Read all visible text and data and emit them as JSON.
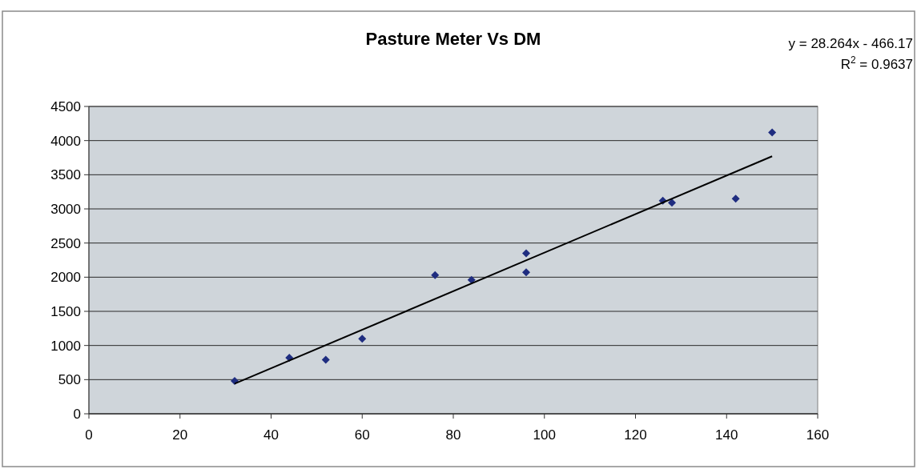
{
  "chart_data": {
    "type": "scatter",
    "title": "Pasture Meter Vs DM",
    "annotations": [
      "y = 28.264x - 466.17",
      "R$^{2}$ = 0.9637"
    ],
    "series": [
      {
        "color": "#1f2d80",
        "marker": "diamond",
        "x": [
          32,
          44,
          52,
          60,
          76,
          84,
          96,
          96,
          126,
          128,
          142,
          150
        ],
        "values": [
          480,
          820,
          790,
          1100,
          2030,
          1960,
          2350,
          2070,
          3120,
          3090,
          3150,
          4120
        ]
      },
      {
        "type": "line",
        "color": "#000000",
        "marker": "none",
        "line_style": "solid",
        "x": [
          32,
          150
        ],
        "values": [
          440,
          3770
        ]
      }
    ],
    "xlim": [
      0,
      160
    ],
    "xticks": [
      0,
      20,
      40,
      60,
      80,
      100,
      120,
      140,
      160
    ],
    "ylim": [
      0,
      4500
    ],
    "yticks": [
      0,
      500,
      1000,
      1500,
      2000,
      2500,
      3000,
      3500,
      4000,
      4500
    ],
    "grid": "y"
  }
}
